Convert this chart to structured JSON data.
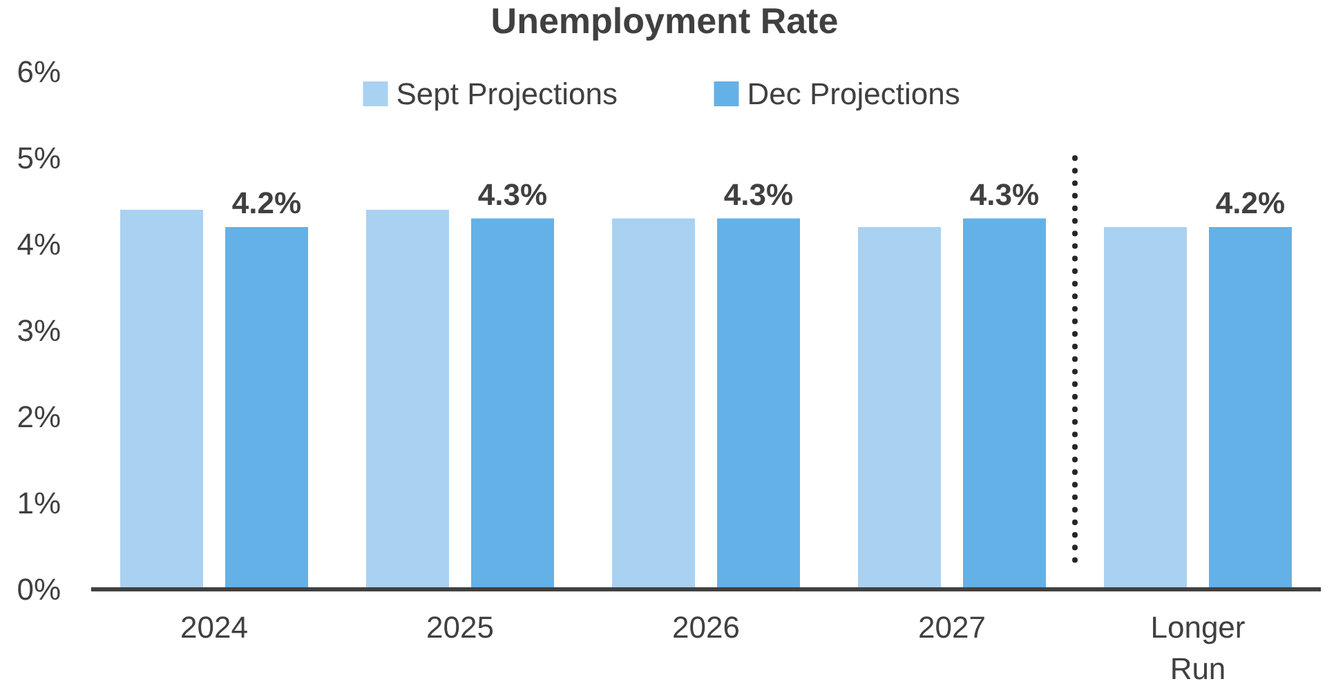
{
  "chart_data": {
    "type": "bar",
    "title": "Unemployment Rate",
    "categories": [
      "2024",
      "2025",
      "2026",
      "2027",
      "Longer\nRun"
    ],
    "series": [
      {
        "name": "Sept Projections",
        "color": "#a9d1f2",
        "values": [
          4.4,
          4.4,
          4.3,
          4.2,
          4.2
        ]
      },
      {
        "name": "Dec Projections",
        "color": "#64b1e8",
        "values": [
          4.2,
          4.3,
          4.3,
          4.3,
          4.2
        ],
        "value_labels": [
          "4.2%",
          "4.3%",
          "4.3%",
          "4.3%",
          "4.2%"
        ]
      }
    ],
    "ylim": [
      0,
      6
    ],
    "yticks": [
      {
        "value": 0,
        "label": "0%"
      },
      {
        "value": 1,
        "label": "1%"
      },
      {
        "value": 2,
        "label": "2%"
      },
      {
        "value": 3,
        "label": "3%"
      },
      {
        "value": 4,
        "label": "4%"
      },
      {
        "value": 5,
        "label": "5%"
      },
      {
        "value": 6,
        "label": "6%"
      }
    ],
    "grid": false,
    "legend": "top"
  }
}
